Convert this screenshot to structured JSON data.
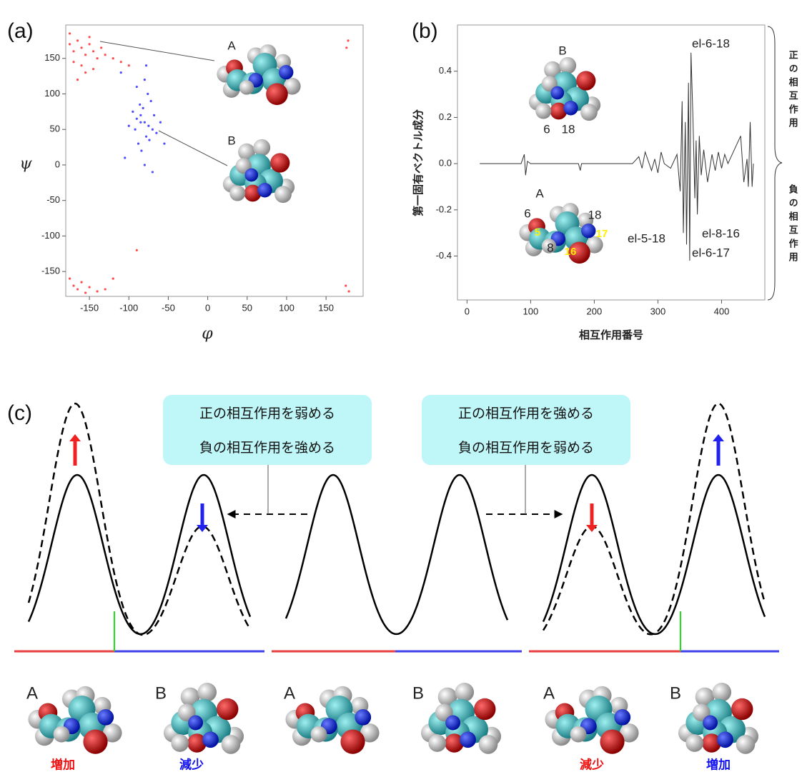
{
  "panel_labels": [
    "(a)",
    "(b)",
    "(c)"
  ],
  "chart_data": [
    {
      "type": "scatter",
      "xlabel": "φ",
      "ylabel": "ψ",
      "xlim": [
        -180,
        197
      ],
      "ylim": [
        -185,
        197
      ],
      "xticks": [
        -150,
        -100,
        -50,
        0,
        50,
        100,
        150
      ],
      "yticks": [
        -150,
        -100,
        -50,
        0,
        50,
        100,
        150
      ],
      "annotations": [
        "A",
        "B"
      ],
      "series": [
        {
          "color": "#ff2020",
          "x": [
            -175,
            -170,
            -165,
            -160,
            -155,
            -150,
            -145,
            -140,
            -170,
            -160,
            -150,
            -130,
            -120,
            -110,
            -165,
            -155,
            -175,
            -145,
            -100,
            -135,
            -170,
            -165,
            -160,
            -155,
            -150,
            -140,
            -175,
            -130,
            178,
            176,
            175,
            179,
            -120,
            -90
          ],
          "values": [
            170,
            160,
            175,
            165,
            155,
            170,
            160,
            150,
            145,
            140,
            180,
            155,
            150,
            145,
            120,
            130,
            185,
            135,
            140,
            165,
            -170,
            -175,
            -165,
            -180,
            -172,
            -178,
            -160,
            -175,
            175,
            165,
            -170,
            -178,
            -160,
            -120
          ]
        },
        {
          "color": "#2020ff",
          "x": [
            -80,
            -75,
            -85,
            -70,
            -90,
            -78,
            -82,
            -65,
            -95,
            -72,
            -88,
            -60,
            -100,
            -76,
            -84,
            -68,
            -92,
            -80,
            -74,
            -86,
            -110,
            -55,
            -105,
            -80,
            -70,
            -90,
            -78,
            -85
          ],
          "values": [
            60,
            55,
            70,
            50,
            65,
            40,
            80,
            45,
            75,
            90,
            30,
            60,
            55,
            100,
            20,
            70,
            50,
            120,
            35,
            85,
            130,
            30,
            10,
            0,
            -10,
            110,
            140,
            60
          ]
        }
      ]
    },
    {
      "type": "line",
      "xlabel": "相互作用番号",
      "ylabel": "第一固有ベクトル成分",
      "color": "#333333",
      "xlim": [
        -15,
        468
      ],
      "ylim": [
        -0.59,
        0.6
      ],
      "xticks": [
        0,
        100,
        200,
        300,
        400
      ],
      "yticks": [
        -0.4,
        -0.2,
        {
          "value": 0,
          "label": "0.0"
        },
        0.2,
        0.4
      ],
      "x": [
        20,
        85,
        90,
        92,
        95,
        100,
        175,
        178,
        180,
        260,
        270,
        275,
        280,
        290,
        295,
        300,
        305,
        310,
        320,
        330,
        335,
        338,
        340,
        343,
        345,
        348,
        350,
        352,
        355,
        358,
        360,
        362,
        365,
        368,
        372,
        378,
        385,
        390,
        395,
        400,
        405,
        410,
        430,
        435,
        440,
        442,
        445,
        448,
        450
      ],
      "values": [
        0,
        0,
        0.04,
        -0.05,
        0.01,
        0,
        0,
        -0.03,
        0,
        0,
        0.03,
        -0.02,
        0.05,
        -0.03,
        0.02,
        -0.04,
        0.05,
        0,
        -0.02,
        0.04,
        -0.12,
        0.27,
        -0.3,
        0.18,
        -0.35,
        0.35,
        -0.42,
        0.48,
        0.2,
        -0.15,
        0.1,
        -0.22,
        0.12,
        -0.05,
        0.06,
        -0.08,
        0.04,
        -0.03,
        0.05,
        -0.02,
        0.04,
        0,
        0.12,
        -0.08,
        0.02,
        -0.1,
        0.18,
        -0.1,
        0
      ],
      "annotations": [
        "el-6-18",
        "el-5-18",
        "el-8-16",
        "el-6-17",
        "B",
        "6",
        "18",
        "A",
        "6",
        "18",
        "8",
        "16",
        "17",
        "5"
      ],
      "bracket_labels": [
        "正の相互作用",
        "負の相互作用"
      ]
    }
  ],
  "diagram": {
    "boxes": [
      {
        "lines": [
          "正の相互作用を弱める",
          "負の相互作用を強める"
        ]
      },
      {
        "lines": [
          "正の相互作用を強める",
          "負の相互作用を弱める"
        ]
      }
    ],
    "molecule_labels": [
      "A",
      "B",
      "A",
      "B",
      "A",
      "B"
    ],
    "changes": [
      "増加",
      "減少",
      "減少",
      "増加"
    ]
  }
}
